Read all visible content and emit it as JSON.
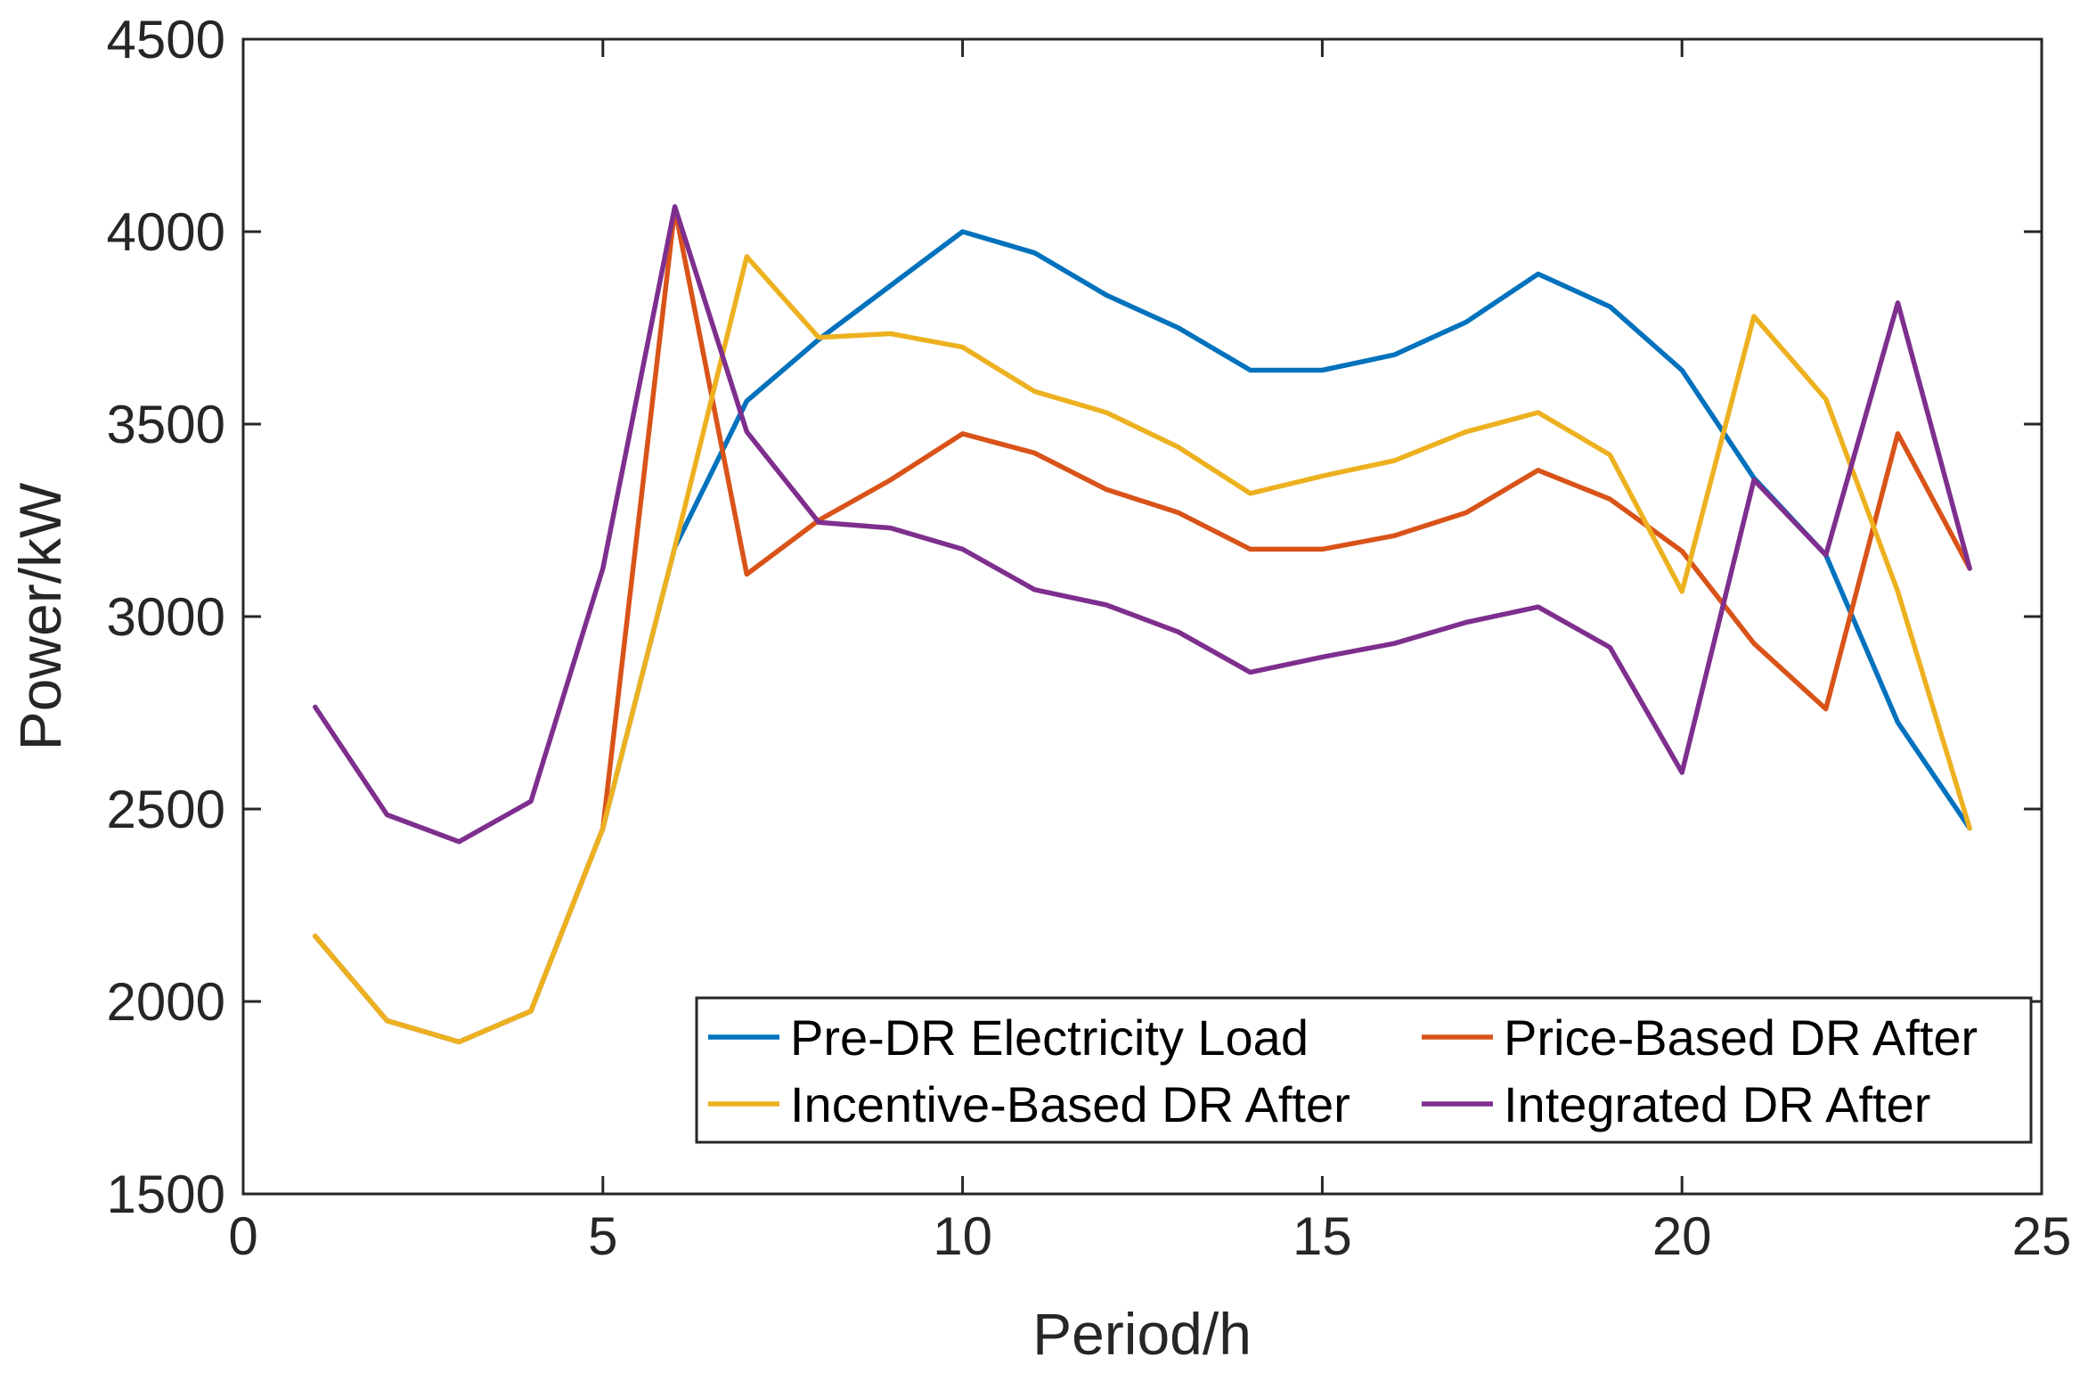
{
  "chart_data": {
    "type": "line",
    "xlabel": "Period/h",
    "ylabel": "Power/kW",
    "xlim": [
      0,
      25
    ],
    "ylim": [
      1500,
      4500
    ],
    "xticks": [
      0,
      5,
      10,
      15,
      20,
      25
    ],
    "yticks": [
      1500,
      2000,
      2500,
      3000,
      3500,
      4000,
      4500
    ],
    "grid": false,
    "legend_position": "bottom-right",
    "legend_columns": 2,
    "x": [
      1,
      2,
      3,
      4,
      5,
      6,
      7,
      8,
      9,
      10,
      11,
      12,
      13,
      14,
      15,
      16,
      17,
      18,
      19,
      20,
      21,
      22,
      23,
      24
    ],
    "series": [
      {
        "name": "Pre-DR Electricity Load",
        "color": "#0072BD",
        "values": [
          2170,
          1950,
          1895,
          1975,
          2450,
          3180,
          3560,
          3720,
          3860,
          4000,
          3945,
          3835,
          3750,
          3640,
          3640,
          3680,
          3765,
          3890,
          3805,
          3640,
          3360,
          3160,
          2725,
          2450
        ]
      },
      {
        "name": "Price-Based DR After",
        "color": "#D95319",
        "values": [
          2170,
          1950,
          1895,
          1975,
          2450,
          4060,
          3110,
          3250,
          3355,
          3475,
          3425,
          3330,
          3270,
          3175,
          3175,
          3210,
          3270,
          3380,
          3305,
          3170,
          2930,
          2760,
          3475,
          3125
        ]
      },
      {
        "name": "Incentive-Based DR After",
        "color": "#EDB120",
        "values": [
          2170,
          1950,
          1895,
          1975,
          2450,
          3180,
          3935,
          3725,
          3735,
          3700,
          3585,
          3530,
          3440,
          3320,
          3365,
          3405,
          3480,
          3530,
          3420,
          3065,
          3780,
          3565,
          3065,
          2450
        ]
      },
      {
        "name": "Integrated DR After",
        "color": "#7E2F8E",
        "values": [
          2765,
          2485,
          2415,
          2520,
          3125,
          4065,
          3480,
          3245,
          3230,
          3175,
          3070,
          3030,
          2960,
          2855,
          2895,
          2930,
          2985,
          3025,
          2920,
          2595,
          3355,
          3160,
          3815,
          3125
        ]
      }
    ]
  }
}
